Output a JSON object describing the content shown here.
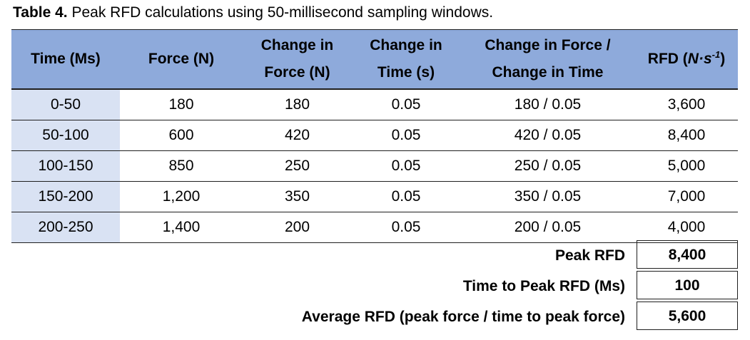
{
  "caption": {
    "label": "Table 4.",
    "text": " Peak RFD calculations using 50-millisecond sampling windows."
  },
  "table": {
    "headers": {
      "time": "Time (Ms)",
      "force": "Force (N)",
      "change_force_1": "Change in",
      "change_force_2": "Force (N)",
      "change_time_1": "Change in",
      "change_time_2": "Time (s)",
      "ratio_1": "Change in Force /",
      "ratio_2": "Change in Time",
      "rfd_prefix": "RFD (",
      "rfd_unit": "N·s",
      "rfd_sup": "-1",
      "rfd_suffix": ")"
    },
    "rows": [
      {
        "time": "0-50",
        "force": "180",
        "change_force": "180",
        "change_time": "0.05",
        "ratio": "180 / 0.05",
        "rfd": "3,600"
      },
      {
        "time": "50-100",
        "force": "600",
        "change_force": "420",
        "change_time": "0.05",
        "ratio": "420 / 0.05",
        "rfd": "8,400"
      },
      {
        "time": "100-150",
        "force": "850",
        "change_force": "250",
        "change_time": "0.05",
        "ratio": "250 / 0.05",
        "rfd": "5,000"
      },
      {
        "time": "150-200",
        "force": "1,200",
        "change_force": "350",
        "change_time": "0.05",
        "ratio": "350 / 0.05",
        "rfd": "7,000"
      },
      {
        "time": "200-250",
        "force": "1,400",
        "change_force": "200",
        "change_time": "0.05",
        "ratio": "200 / 0.05",
        "rfd": "4,000"
      }
    ]
  },
  "summary": {
    "peak_rfd": {
      "label": "Peak RFD",
      "value": "8,400"
    },
    "time_to_peak": {
      "label": "Time to Peak RFD (Ms)",
      "value": "100"
    },
    "average_rfd": {
      "label": "Average RFD (peak force / time to peak force)",
      "value": "5,600"
    }
  },
  "colors": {
    "header_bg": "#8eaadb",
    "time_col_bg": "#d9e2f3",
    "border": "#1f1f1f"
  }
}
